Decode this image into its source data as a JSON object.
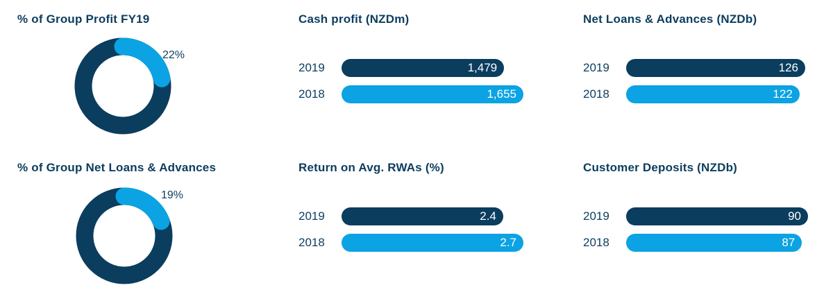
{
  "colors": {
    "dark": "#0b3d5e",
    "light": "#0ba3e3"
  },
  "chart_data": [
    {
      "type": "pie",
      "title": "% of Group Profit FY19",
      "values": [
        22,
        78
      ],
      "highlight_label": "22%"
    },
    {
      "type": "pie",
      "title": "% of Group Net Loans & Advances",
      "values": [
        19,
        81
      ],
      "highlight_label": "19%"
    },
    {
      "type": "bar",
      "orientation": "horizontal",
      "title": "Cash profit (NZDm)",
      "categories": [
        "2019",
        "2018"
      ],
      "values": [
        1479,
        1655
      ],
      "labels": [
        "1,479",
        "1,655"
      ]
    },
    {
      "type": "bar",
      "orientation": "horizontal",
      "title": "Return on Avg. RWAs (%)",
      "categories": [
        "2019",
        "2018"
      ],
      "values": [
        2.4,
        2.7
      ],
      "labels": [
        "2.4",
        "2.7"
      ]
    },
    {
      "type": "bar",
      "orientation": "horizontal",
      "title": "Net Loans & Advances (NZDb)",
      "categories": [
        "2019",
        "2018"
      ],
      "values": [
        126,
        122
      ],
      "labels": [
        "126",
        "122"
      ]
    },
    {
      "type": "bar",
      "orientation": "horizontal",
      "title": "Customer Deposits (NZDb)",
      "categories": [
        "2019",
        "2018"
      ],
      "values": [
        90,
        87
      ],
      "labels": [
        "90",
        "87"
      ]
    }
  ]
}
